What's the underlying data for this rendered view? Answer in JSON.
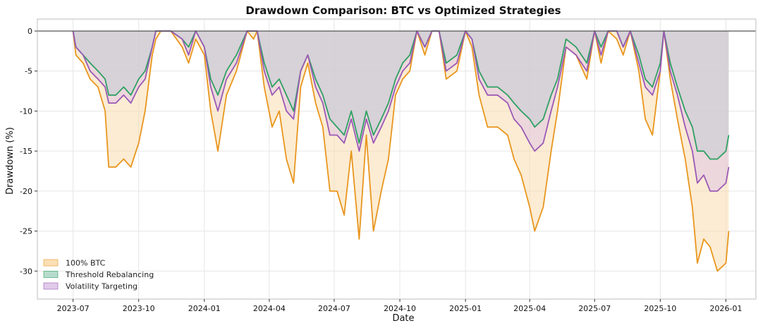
{
  "chart_data": {
    "type": "area",
    "title": "Drawdown Comparison: BTC vs Optimized Strategies",
    "xlabel": "Date",
    "ylabel": "Drawdown (%)",
    "xlim": [
      "2023-05-12",
      "2026-02-12"
    ],
    "ylim": [
      -33.5,
      1.5
    ],
    "x_ticks": [
      "2023-07",
      "2023-10",
      "2024-01",
      "2024-04",
      "2024-07",
      "2024-10",
      "2025-01",
      "2025-04",
      "2025-07",
      "2025-10",
      "2026-01"
    ],
    "y_ticks": [
      0,
      -5,
      -10,
      -15,
      -20,
      -25,
      -30
    ],
    "grid": true,
    "legend_position": "bottom-left",
    "reference_line": 0,
    "x": [
      "2023-07-01",
      "2023-07-05",
      "2023-07-15",
      "2023-07-25",
      "2023-08-05",
      "2023-08-15",
      "2023-08-20",
      "2023-08-30",
      "2023-09-10",
      "2023-09-20",
      "2023-10-01",
      "2023-10-10",
      "2023-10-20",
      "2023-10-25",
      "2023-11-01",
      "2023-11-15",
      "2023-12-01",
      "2023-12-10",
      "2023-12-20",
      "2024-01-01",
      "2024-01-10",
      "2024-01-20",
      "2024-02-01",
      "2024-02-15",
      "2024-03-01",
      "2024-03-10",
      "2024-03-15",
      "2024-03-25",
      "2024-04-05",
      "2024-04-15",
      "2024-04-25",
      "2024-05-05",
      "2024-05-15",
      "2024-05-25",
      "2024-06-05",
      "2024-06-15",
      "2024-06-25",
      "2024-07-05",
      "2024-07-15",
      "2024-07-25",
      "2024-08-05",
      "2024-08-15",
      "2024-08-25",
      "2024-09-05",
      "2024-09-15",
      "2024-09-25",
      "2024-10-05",
      "2024-10-15",
      "2024-10-25",
      "2024-11-05",
      "2024-11-15",
      "2024-11-25",
      "2024-12-05",
      "2024-12-20",
      "2025-01-01",
      "2025-01-10",
      "2025-01-20",
      "2025-02-01",
      "2025-02-15",
      "2025-03-01",
      "2025-03-10",
      "2025-03-20",
      "2025-04-01",
      "2025-04-08",
      "2025-04-20",
      "2025-05-01",
      "2025-05-10",
      "2025-05-22",
      "2025-06-05",
      "2025-06-20",
      "2025-07-01",
      "2025-07-10",
      "2025-07-20",
      "2025-08-01",
      "2025-08-10",
      "2025-08-20",
      "2025-09-01",
      "2025-09-10",
      "2025-09-20",
      "2025-10-01",
      "2025-10-06",
      "2025-10-15",
      "2025-10-25",
      "2025-11-05",
      "2025-11-15",
      "2025-11-22",
      "2025-12-01",
      "2025-12-10",
      "2025-12-20",
      "2026-01-01",
      "2026-01-05"
    ],
    "series": [
      {
        "name": "100% BTC",
        "color": "#E8961E",
        "fill": "#FAD9A8",
        "values": [
          0,
          -3,
          -4,
          -6,
          -7,
          -10,
          -17,
          -17,
          -16,
          -17,
          -14,
          -10,
          -3,
          -1,
          0,
          0,
          -2,
          -4,
          -1,
          -3,
          -10,
          -15,
          -8,
          -5,
          0,
          -1,
          0,
          -7,
          -12,
          -10,
          -16,
          -19,
          -7,
          -4,
          -9,
          -12,
          -20,
          -20,
          -23,
          -15,
          -26,
          -13,
          -25,
          -20,
          -16,
          -8,
          -6,
          -5,
          0,
          -3,
          0,
          0,
          -6,
          -5,
          0,
          -2,
          -8,
          -12,
          -12,
          -13,
          -16,
          -18,
          -22,
          -25,
          -22,
          -15,
          -10,
          -2,
          -3,
          -6,
          0,
          -4,
          0,
          -1,
          -3,
          0,
          -5,
          -11,
          -13,
          -5,
          0,
          -6,
          -11,
          -16,
          -22,
          -29,
          -26,
          -27,
          -30,
          -29,
          -25
        ]
      },
      {
        "name": "Threshold Rebalancing",
        "color": "#2EA063",
        "fill": "#A9D5C3",
        "values": [
          0,
          -2,
          -3,
          -4,
          -5,
          -6,
          -8,
          -8,
          -7,
          -8,
          -6,
          -5,
          -2,
          0,
          0,
          0,
          -1,
          -2,
          0,
          -2,
          -6,
          -8,
          -5,
          -3,
          0,
          0,
          0,
          -4,
          -7,
          -6,
          -8,
          -10,
          -5,
          -3,
          -6,
          -8,
          -11,
          -12,
          -13,
          -10,
          -14,
          -10,
          -13,
          -11,
          -9,
          -6,
          -4,
          -3,
          0,
          -2,
          0,
          0,
          -4,
          -3,
          0,
          -1,
          -5,
          -7,
          -7,
          -8,
          -9,
          -10,
          -11,
          -12,
          -11,
          -8,
          -6,
          -1,
          -2,
          -4,
          0,
          -2,
          0,
          0,
          -2,
          0,
          -3,
          -6,
          -7,
          -4,
          0,
          -4,
          -7,
          -10,
          -12,
          -15,
          -15,
          -16,
          -16,
          -15,
          -13
        ]
      },
      {
        "name": "Volatility Targeting",
        "color": "#9B59B6",
        "fill": "#DCC1E6",
        "values": [
          0,
          -2,
          -3,
          -5,
          -6,
          -7,
          -9,
          -9,
          -8,
          -9,
          -7,
          -6,
          -2,
          0,
          0,
          0,
          -1,
          -3,
          0,
          -2,
          -7,
          -10,
          -6,
          -4,
          0,
          0,
          0,
          -5,
          -8,
          -7,
          -10,
          -11,
          -5,
          -3,
          -7,
          -9,
          -13,
          -13,
          -14,
          -11,
          -15,
          -11,
          -14,
          -12,
          -10,
          -7,
          -5,
          -4,
          0,
          -2,
          0,
          0,
          -5,
          -4,
          0,
          -1,
          -6,
          -8,
          -8,
          -9,
          -11,
          -12,
          -14,
          -15,
          -14,
          -10,
          -7,
          -2,
          -3,
          -5,
          0,
          -3,
          0,
          0,
          -2,
          0,
          -4,
          -7,
          -8,
          -5,
          0,
          -5,
          -8,
          -12,
          -15,
          -19,
          -18,
          -20,
          -20,
          -19,
          -17
        ]
      }
    ]
  }
}
